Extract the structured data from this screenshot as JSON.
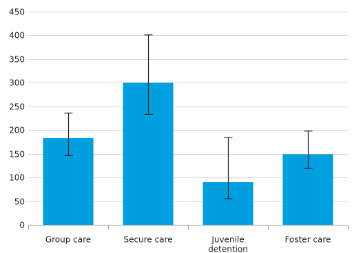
{
  "chart_data": {
    "type": "bar",
    "categories": [
      "Group care",
      "Secure care",
      "Juvenile detention",
      "Foster care"
    ],
    "category_label_lines": [
      [
        "Group care"
      ],
      [
        "Secure care"
      ],
      [
        "Juvenile",
        "detention"
      ],
      [
        "Foster care"
      ]
    ],
    "values": [
      183,
      300,
      90,
      149
    ],
    "error_low": [
      146,
      233,
      55,
      119
    ],
    "error_high": [
      236,
      401,
      184,
      198
    ],
    "ylim": [
      0,
      450
    ],
    "yticks": [
      0,
      50,
      100,
      150,
      200,
      250,
      300,
      350,
      400,
      450
    ],
    "grid": true,
    "title": "",
    "xlabel": "",
    "ylabel": "",
    "colors": {
      "bar": "#009fe0",
      "error": "#222222",
      "grid": "#d6d6d6"
    }
  }
}
